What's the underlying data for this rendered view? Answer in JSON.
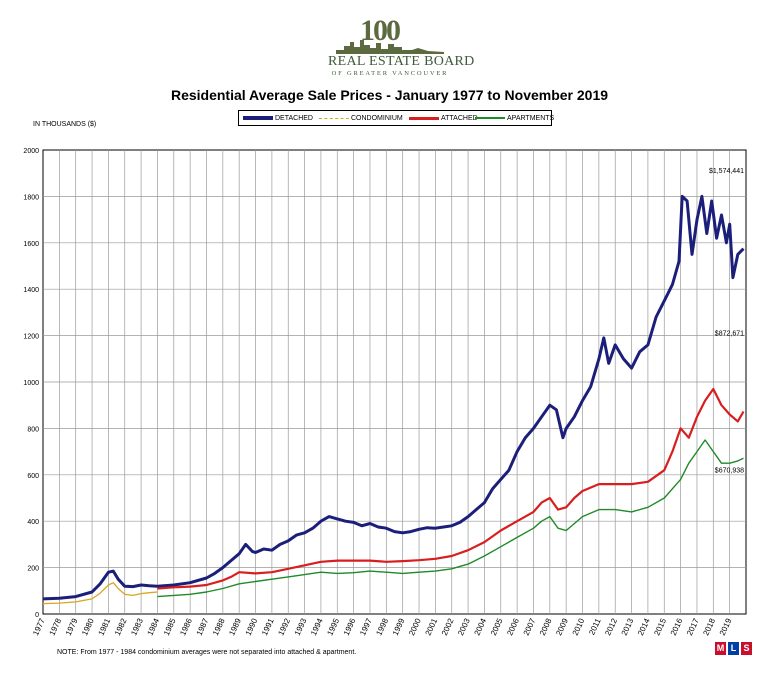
{
  "logo": {
    "anniversary_number": "100",
    "name": "REAL ESTATE BOARD",
    "subtitle": "OF GREATER VANCOUVER"
  },
  "footer": {
    "note": "NOTE:  From 1977 - 1984 condominium averages were not separated into attached & apartment.",
    "mls_logo": "MLS"
  },
  "colors": {
    "detached": "#1b1f7a",
    "condominium": "#d9a520",
    "attached": "#d81e1e",
    "apartments": "#1e8a28"
  },
  "chart_data": {
    "type": "line",
    "title": "Residential Average Sale Prices  -  January 1977 to November 2019",
    "ylabel": "IN THOUSANDS ($)",
    "ylim": [
      0,
      2000
    ],
    "yticks": [
      0,
      200,
      400,
      600,
      800,
      1000,
      1200,
      1400,
      1600,
      1800,
      2000
    ],
    "xlim": [
      1977,
      2020
    ],
    "xticks": [
      "1977",
      "1978",
      "1979",
      "1980",
      "1981",
      "1982",
      "1983",
      "1984",
      "1985",
      "1986",
      "1987",
      "1988",
      "1989",
      "1990",
      "1991",
      "1992",
      "1993",
      "1994",
      "1995",
      "1996",
      "1997",
      "1998",
      "1999",
      "2000",
      "2001",
      "2002",
      "2003",
      "2004",
      "2005",
      "2006",
      "2007",
      "2008",
      "2009",
      "2010",
      "2011",
      "2012",
      "2013",
      "2014",
      "2015",
      "2016",
      "2017",
      "2018",
      "2019"
    ],
    "grid": true,
    "legend_position": "top-center",
    "series": [
      {
        "name": "DETACHED",
        "x": [
          1977.0,
          1978.0,
          1979.0,
          1980.0,
          1980.5,
          1981.0,
          1981.3,
          1981.6,
          1982.0,
          1982.5,
          1983.0,
          1983.5,
          1984.0,
          1985.0,
          1986.0,
          1987.0,
          1987.5,
          1988.0,
          1988.5,
          1989.0,
          1989.4,
          1989.8,
          1990.0,
          1990.5,
          1991.0,
          1991.5,
          1992.0,
          1992.5,
          1993.0,
          1993.5,
          1994.0,
          1994.5,
          1995.0,
          1995.5,
          1996.0,
          1996.5,
          1997.0,
          1997.5,
          1998.0,
          1998.5,
          1999.0,
          1999.5,
          2000.0,
          2000.5,
          2001.0,
          2001.5,
          2002.0,
          2002.5,
          2003.0,
          2003.5,
          2004.0,
          2004.5,
          2005.0,
          2005.5,
          2006.0,
          2006.5,
          2007.0,
          2007.5,
          2008.0,
          2008.4,
          2008.8,
          2009.0,
          2009.5,
          2010.0,
          2010.5,
          2011.0,
          2011.3,
          2011.6,
          2012.0,
          2012.5,
          2013.0,
          2013.5,
          2014.0,
          2014.5,
          2015.0,
          2015.5,
          2015.9,
          2016.1,
          2016.4,
          2016.7,
          2017.0,
          2017.3,
          2017.6,
          2017.9,
          2018.2,
          2018.5,
          2018.8,
          2019.0,
          2019.2,
          2019.5,
          2019.85
        ],
        "values": [
          65,
          68,
          75,
          95,
          130,
          180,
          185,
          150,
          120,
          118,
          125,
          122,
          120,
          125,
          135,
          155,
          175,
          200,
          230,
          260,
          300,
          270,
          265,
          280,
          275,
          300,
          315,
          340,
          350,
          370,
          400,
          420,
          410,
          400,
          395,
          380,
          390,
          375,
          370,
          355,
          350,
          355,
          365,
          372,
          370,
          375,
          380,
          395,
          420,
          450,
          480,
          540,
          580,
          620,
          700,
          760,
          800,
          850,
          900,
          880,
          760,
          800,
          850,
          920,
          980,
          1100,
          1190,
          1080,
          1160,
          1100,
          1060,
          1130,
          1160,
          1280,
          1350,
          1420,
          1520,
          1800,
          1780,
          1550,
          1700,
          1800,
          1640,
          1780,
          1620,
          1720,
          1600,
          1680,
          1450,
          1550,
          1574.441
        ]
      },
      {
        "name": "CONDOMINIUM",
        "x": [
          1977.0,
          1978.0,
          1979.0,
          1980.0,
          1980.5,
          1981.0,
          1981.3,
          1981.6,
          1982.0,
          1982.5,
          1983.0,
          1983.5,
          1984.0
        ],
        "values": [
          45,
          47,
          52,
          65,
          90,
          125,
          135,
          110,
          85,
          80,
          88,
          92,
          95
        ]
      },
      {
        "name": "ATTACHED",
        "x": [
          1984.0,
          1985.0,
          1986.0,
          1987.0,
          1988.0,
          1988.5,
          1989.0,
          1990.0,
          1991.0,
          1992.0,
          1993.0,
          1994.0,
          1995.0,
          1996.0,
          1997.0,
          1998.0,
          1999.0,
          2000.0,
          2001.0,
          2002.0,
          2003.0,
          2004.0,
          2005.0,
          2006.0,
          2007.0,
          2007.5,
          2008.0,
          2008.5,
          2009.0,
          2009.5,
          2010.0,
          2011.0,
          2012.0,
          2013.0,
          2014.0,
          2015.0,
          2015.5,
          2016.0,
          2016.5,
          2017.0,
          2017.5,
          2018.0,
          2018.5,
          2019.0,
          2019.5,
          2019.85
        ],
        "values": [
          110,
          115,
          118,
          125,
          145,
          160,
          180,
          175,
          180,
          195,
          210,
          225,
          230,
          230,
          230,
          225,
          228,
          232,
          238,
          250,
          275,
          310,
          360,
          400,
          440,
          480,
          500,
          450,
          460,
          500,
          530,
          560,
          560,
          560,
          570,
          620,
          700,
          800,
          760,
          850,
          920,
          970,
          900,
          860,
          830,
          872.671
        ]
      },
      {
        "name": "APARTMENTS",
        "x": [
          1984.0,
          1985.0,
          1986.0,
          1987.0,
          1988.0,
          1989.0,
          1990.0,
          1991.0,
          1992.0,
          1993.0,
          1994.0,
          1995.0,
          1996.0,
          1997.0,
          1998.0,
          1999.0,
          2000.0,
          2001.0,
          2002.0,
          2003.0,
          2004.0,
          2005.0,
          2006.0,
          2007.0,
          2007.5,
          2008.0,
          2008.5,
          2009.0,
          2010.0,
          2011.0,
          2012.0,
          2013.0,
          2014.0,
          2015.0,
          2016.0,
          2016.5,
          2017.0,
          2017.5,
          2018.0,
          2018.5,
          2019.0,
          2019.5,
          2019.85
        ],
        "values": [
          75,
          80,
          85,
          95,
          110,
          130,
          140,
          150,
          160,
          170,
          180,
          175,
          178,
          185,
          180,
          175,
          180,
          185,
          195,
          215,
          250,
          290,
          330,
          370,
          400,
          420,
          370,
          360,
          420,
          450,
          450,
          440,
          460,
          500,
          580,
          650,
          700,
          750,
          700,
          650,
          650,
          660,
          670.938
        ]
      }
    ],
    "annotations": [
      "$1,574,441",
      "$872,671",
      "$670,938"
    ]
  }
}
